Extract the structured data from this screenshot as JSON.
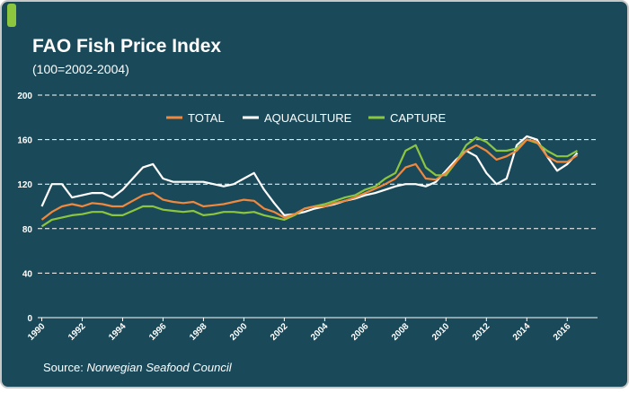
{
  "chart_data": {
    "type": "line",
    "title": "FAO Fish Price Index",
    "subtitle": "(100=2002-2004)",
    "source_label": "Source:",
    "source": "Norwegian Seafood Council",
    "x": [
      1990,
      1990.5,
      1991,
      1991.5,
      1992,
      1992.5,
      1993,
      1993.5,
      1994,
      1994.5,
      1995,
      1995.5,
      1996,
      1996.5,
      1997,
      1997.5,
      1998,
      1998.5,
      1999,
      1999.5,
      2000,
      2000.5,
      2001,
      2001.5,
      2002,
      2002.5,
      2003,
      2003.5,
      2004,
      2004.5,
      2005,
      2005.5,
      2006,
      2006.5,
      2007,
      2007.5,
      2008,
      2008.5,
      2009,
      2009.5,
      2010,
      2010.5,
      2011,
      2011.5,
      2012,
      2012.5,
      2013,
      2013.5,
      2014,
      2014.5,
      2015,
      2015.5,
      2016,
      2016.5
    ],
    "series": [
      {
        "name": "TOTAL",
        "color": "#f0883e",
        "values": [
          88,
          95,
          100,
          102,
          100,
          103,
          102,
          100,
          100,
          105,
          110,
          112,
          106,
          104,
          103,
          104,
          100,
          101,
          102,
          104,
          106,
          105,
          98,
          95,
          90,
          93,
          98,
          100,
          100,
          103,
          105,
          108,
          112,
          116,
          120,
          125,
          135,
          138,
          125,
          124,
          130,
          140,
          150,
          155,
          150,
          142,
          145,
          150,
          160,
          158,
          145,
          140,
          140,
          146
        ]
      },
      {
        "name": "AQUACULTURE",
        "color": "#ffffff",
        "values": [
          100,
          120,
          120,
          108,
          110,
          112,
          112,
          108,
          115,
          125,
          135,
          138,
          125,
          122,
          122,
          122,
          122,
          120,
          118,
          120,
          125,
          130,
          115,
          103,
          92,
          93,
          95,
          98,
          100,
          102,
          105,
          107,
          110,
          112,
          115,
          118,
          120,
          120,
          118,
          122,
          132,
          142,
          150,
          145,
          130,
          120,
          125,
          155,
          163,
          160,
          145,
          132,
          138,
          148
        ]
      },
      {
        "name": "CAPTURE",
        "color": "#8cc63f",
        "values": [
          82,
          88,
          90,
          92,
          93,
          95,
          95,
          92,
          92,
          96,
          100,
          100,
          97,
          96,
          95,
          96,
          92,
          93,
          95,
          95,
          94,
          95,
          92,
          90,
          88,
          92,
          98,
          100,
          102,
          105,
          108,
          110,
          115,
          118,
          125,
          130,
          150,
          155,
          135,
          128,
          128,
          140,
          155,
          162,
          158,
          150,
          150,
          152,
          160,
          157,
          150,
          145,
          145,
          150
        ]
      }
    ],
    "xlim": [
      1989.8,
      2017.5
    ],
    "xticks": [
      1990,
      1992,
      1994,
      1996,
      1998,
      2000,
      2002,
      2004,
      2006,
      2008,
      2010,
      2012,
      2014,
      2016
    ],
    "ylim": [
      0,
      200
    ],
    "yticks": [
      0,
      40,
      80,
      120,
      160,
      200
    ],
    "grid": true
  }
}
